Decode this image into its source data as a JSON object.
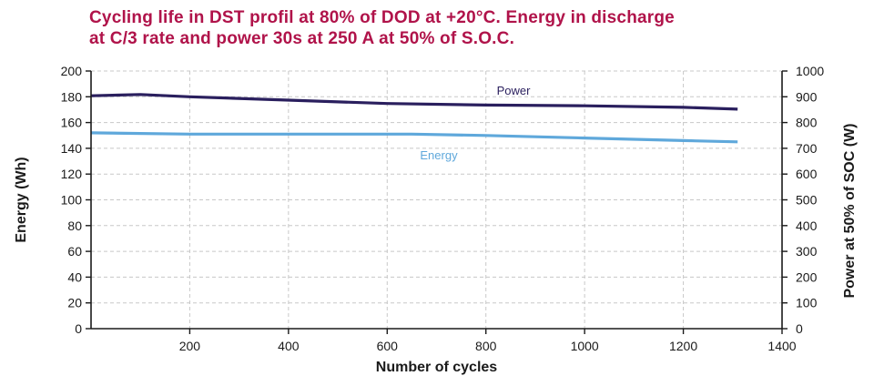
{
  "title_lines": [
    "Cycling life in DST profil at 80% of DOD at +20°C. Energy in discharge",
    "at C/3 rate and power 30s at 250 A at 50% of S.O.C."
  ],
  "colors": {
    "title": "#b0134a",
    "power": "#2a1f5e",
    "energy": "#5fa8db",
    "grid": "#c8c8c8",
    "axis": "#1a1a1a"
  },
  "chart_data": {
    "type": "line",
    "title": "Cycling life in DST profil at 80% of DOD at +20°C. Energy in discharge at C/3 rate and power 30s at 250 A at 50% of S.O.C.",
    "xlabel": "Number of cycles",
    "ylabel": "Energy (Wh)",
    "y2label": "Power at 50% of SOC (W)",
    "xlim": [
      0,
      1400
    ],
    "ylim": [
      0,
      200
    ],
    "y2lim": [
      0,
      1000
    ],
    "x_ticks": [
      200,
      400,
      600,
      800,
      1000,
      1200,
      1400
    ],
    "y_ticks": [
      0,
      20,
      40,
      60,
      80,
      100,
      120,
      140,
      160,
      180,
      200
    ],
    "y2_ticks": [
      0,
      100,
      200,
      300,
      400,
      500,
      600,
      700,
      800,
      900,
      1000
    ],
    "grid": true,
    "series": [
      {
        "name": "Power",
        "axis": "right",
        "x": [
          0,
          100,
          200,
          400,
          600,
          800,
          1000,
          1200,
          1310
        ],
        "y": [
          904,
          909,
          900,
          887,
          874,
          868,
          865,
          859,
          852
        ]
      },
      {
        "name": "Energy",
        "axis": "left",
        "x": [
          0,
          200,
          400,
          650,
          800,
          1000,
          1200,
          1310
        ],
        "y": [
          152,
          151,
          151,
          151,
          150,
          148,
          146,
          145
        ]
      }
    ]
  }
}
